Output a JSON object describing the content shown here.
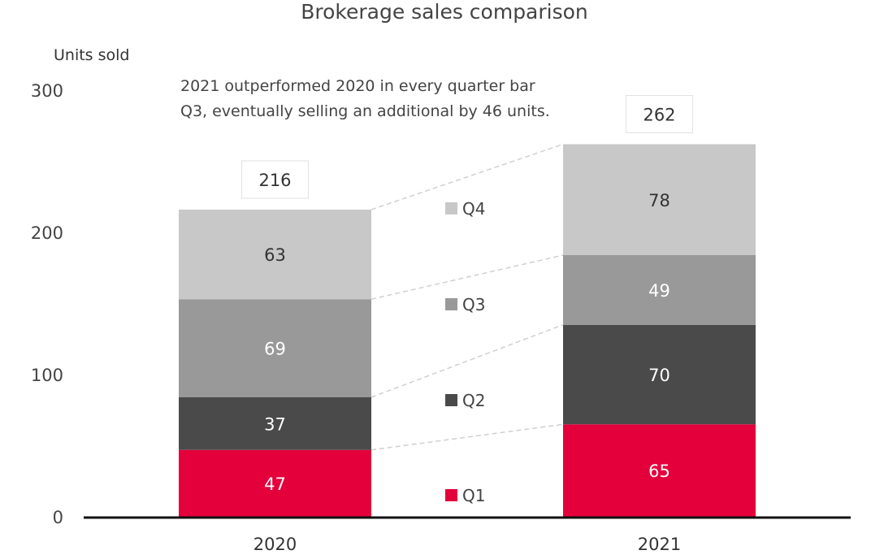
{
  "chart_data": {
    "type": "bar",
    "stacked": true,
    "title": "Brokerage sales comparison",
    "xlabel": "",
    "ylabel": "Units sold",
    "ylim": [
      0,
      300
    ],
    "yticks": [
      0,
      100,
      200,
      300
    ],
    "categories": [
      "2020",
      "2021"
    ],
    "series": [
      {
        "name": "Q1",
        "values": [
          47,
          65
        ],
        "color": "#e4003b",
        "label_color": "#ffffff"
      },
      {
        "name": "Q2",
        "values": [
          37,
          70
        ],
        "color": "#4a4a4a",
        "label_color": "#ffffff"
      },
      {
        "name": "Q3",
        "values": [
          69,
          49
        ],
        "color": "#999999",
        "label_color": "#ffffff"
      },
      {
        "name": "Q4",
        "values": [
          63,
          78
        ],
        "color": "#c8c8c8",
        "label_color": "#333333"
      }
    ],
    "totals": [
      216,
      262
    ],
    "annotation": [
      "2021 outperformed 2020 in every quarter bar",
      "Q3, eventually selling an additional by 46 units."
    ],
    "legend": "between-bars",
    "grid": false
  }
}
